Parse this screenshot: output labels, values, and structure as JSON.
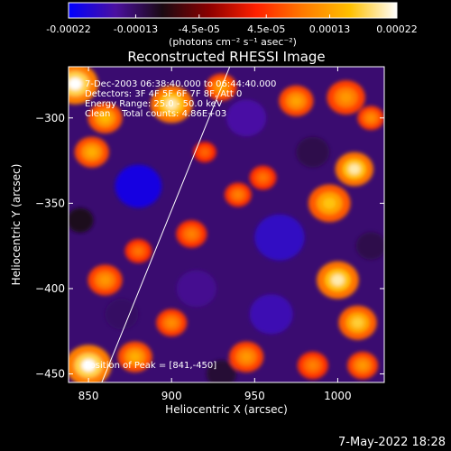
{
  "colorbar": {
    "tick_labels": [
      "-0.00022",
      "-0.00013",
      "-4.5e-05",
      "4.5e-05",
      "0.00013",
      "0.00022"
    ],
    "tick_values": [
      -0.00022,
      -0.00013,
      -4.5e-05,
      4.5e-05,
      0.00013,
      0.00022
    ],
    "range": [
      -0.00022,
      0.00022
    ],
    "unit_label": "(photons cm⁻² s⁻¹ asec⁻²)",
    "colors": [
      "#0000ff",
      "#4b10a0",
      "#1a0a12",
      "#8c0000",
      "#ff2000",
      "#ff7a00",
      "#ffc000",
      "#ffffff"
    ]
  },
  "info_lines": [
    "7-Dec-2003 06:38:40.000 to 06:44:40.000",
    "Detectors: 3F 4F 5F 6F 7F 8F, Att 0",
    "Energy Range: 25.0 - 50.0 keV",
    "Clean    Total counts: 4.86E+03"
  ],
  "footer": {
    "timestamp": "7-May-2022 18:28"
  },
  "chart_data": {
    "type": "heatmap",
    "title": "Reconstructed RHESSI Image",
    "xlabel": "Heliocentric X (arcsec)",
    "ylabel": "Heliocentric Y (arcsec)",
    "xlim": [
      838,
      1028
    ],
    "ylim": [
      -455,
      -270
    ],
    "x_ticks": [
      850,
      900,
      950,
      1000
    ],
    "y_ticks": [
      -300,
      -350,
      -400,
      -450
    ],
    "limb_line": {
      "x": [
        858,
        935
      ],
      "y": [
        -455,
        -270
      ]
    },
    "peak": {
      "label": "Position of Peak = [841,-450]",
      "x": 841,
      "y": -450
    },
    "hot_spots": [
      {
        "x": 842,
        "y": -280,
        "r": 12,
        "v": 0.00022
      },
      {
        "x": 900,
        "y": -292,
        "r": 11,
        "v": 0.0002
      },
      {
        "x": 860,
        "y": -300,
        "r": 9,
        "v": 0.00015
      },
      {
        "x": 852,
        "y": -320,
        "r": 9,
        "v": 0.00014
      },
      {
        "x": 930,
        "y": -282,
        "r": 8,
        "v": 0.00013
      },
      {
        "x": 975,
        "y": -290,
        "r": 9,
        "v": 0.00013
      },
      {
        "x": 1005,
        "y": -288,
        "r": 10,
        "v": 0.00012
      },
      {
        "x": 1010,
        "y": -330,
        "r": 10,
        "v": 0.0002
      },
      {
        "x": 995,
        "y": -350,
        "r": 11,
        "v": 0.00016
      },
      {
        "x": 940,
        "y": -345,
        "r": 7,
        "v": 0.0001
      },
      {
        "x": 955,
        "y": -335,
        "r": 7,
        "v": 9e-05
      },
      {
        "x": 912,
        "y": -368,
        "r": 8,
        "v": 0.0001
      },
      {
        "x": 880,
        "y": -378,
        "r": 7,
        "v": 9e-05
      },
      {
        "x": 860,
        "y": -395,
        "r": 9,
        "v": 0.00012
      },
      {
        "x": 1000,
        "y": -395,
        "r": 11,
        "v": 0.0002
      },
      {
        "x": 1012,
        "y": -420,
        "r": 10,
        "v": 0.00017
      },
      {
        "x": 900,
        "y": -420,
        "r": 8,
        "v": 0.00011
      },
      {
        "x": 945,
        "y": -440,
        "r": 9,
        "v": 0.00012
      },
      {
        "x": 878,
        "y": -440,
        "r": 9,
        "v": 0.00014
      },
      {
        "x": 850,
        "y": -445,
        "r": 12,
        "v": 0.00022
      },
      {
        "x": 985,
        "y": -445,
        "r": 8,
        "v": 0.0001
      },
      {
        "x": 1020,
        "y": -300,
        "r": 7,
        "v": 0.00011
      },
      {
        "x": 920,
        "y": -320,
        "r": 6,
        "v": 8e-05
      },
      {
        "x": 1015,
        "y": -445,
        "r": 8,
        "v": 0.00012
      }
    ],
    "cold_spots": [
      {
        "x": 880,
        "y": -340,
        "r": 14,
        "v": -0.0002
      },
      {
        "x": 945,
        "y": -300,
        "r": 12,
        "v": -0.00016
      },
      {
        "x": 965,
        "y": -370,
        "r": 15,
        "v": -0.00018
      },
      {
        "x": 915,
        "y": -400,
        "r": 12,
        "v": -0.00015
      },
      {
        "x": 960,
        "y": -415,
        "r": 13,
        "v": -0.00017
      },
      {
        "x": 1020,
        "y": -375,
        "r": 9,
        "v": -0.00012
      },
      {
        "x": 870,
        "y": -415,
        "r": 10,
        "v": -0.00013
      },
      {
        "x": 985,
        "y": -320,
        "r": 10,
        "v": -0.00012
      },
      {
        "x": 930,
        "y": -450,
        "r": 9,
        "v": -0.00011
      },
      {
        "x": 845,
        "y": -360,
        "r": 8,
        "v": -0.0001
      }
    ]
  }
}
